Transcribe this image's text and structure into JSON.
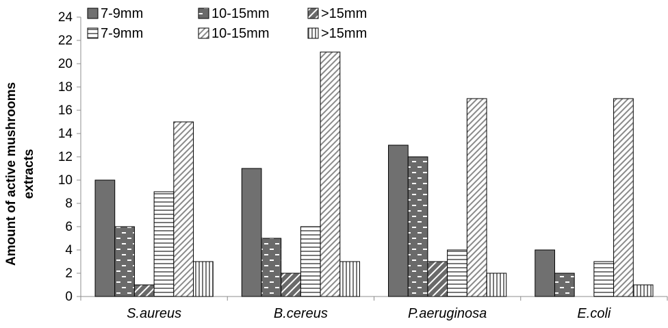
{
  "chart_data": {
    "type": "bar",
    "title": "",
    "xlabel": "",
    "ylabel": [
      "Amount of active mushrooms",
      "extracts"
    ],
    "ylim": [
      0,
      24
    ],
    "yticks": [
      0,
      2,
      4,
      6,
      8,
      10,
      12,
      14,
      16,
      18,
      20,
      22,
      24
    ],
    "categories": [
      "S.aureus",
      "B.cereus",
      "P.aeruginosa",
      "E.coli"
    ],
    "grid": false,
    "legend_position": "top-left",
    "series": [
      {
        "name": "7-9mm",
        "pattern": "solid",
        "color": "#707070",
        "values": [
          10,
          11,
          13,
          4
        ]
      },
      {
        "name": "10-15mm",
        "pattern": "dash-dots",
        "color": "#707070",
        "values": [
          6,
          5,
          12,
          2
        ]
      },
      {
        "name": ">15mm",
        "pattern": "diagonal-dark",
        "color": "#707070",
        "values": [
          1,
          2,
          3,
          0
        ]
      },
      {
        "name": "7-9mm",
        "pattern": "horizontal-lines",
        "color": "#707070",
        "values": [
          9,
          6,
          4,
          3
        ]
      },
      {
        "name": "10-15mm",
        "pattern": "diagonal-light",
        "color": "#707070",
        "values": [
          15,
          21,
          17,
          17
        ]
      },
      {
        "name": ">15mm",
        "pattern": "vertical-lines",
        "color": "#707070",
        "values": [
          3,
          3,
          2,
          1
        ]
      }
    ]
  }
}
